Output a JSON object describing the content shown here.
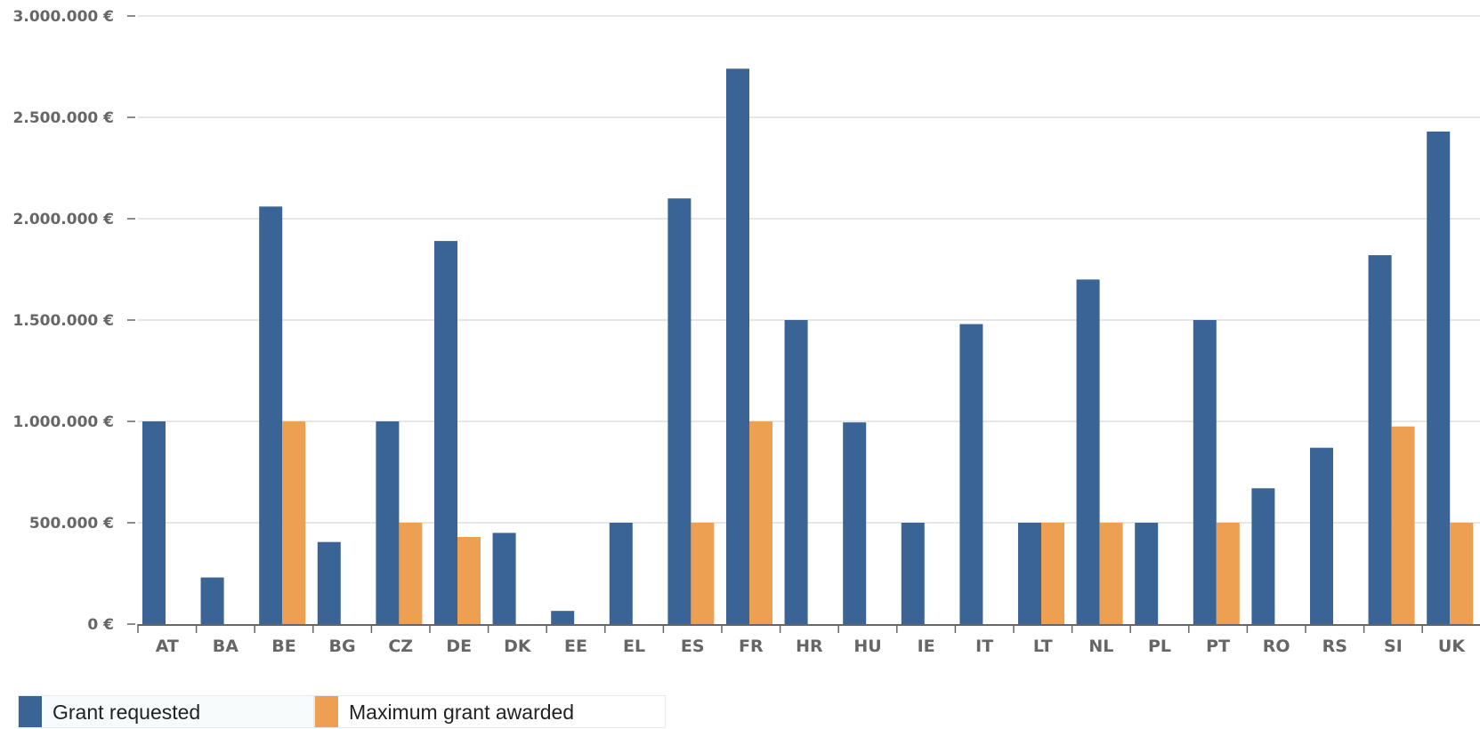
{
  "chart_data": {
    "type": "bar",
    "title": "",
    "xlabel": "",
    "ylabel": "",
    "ylim": [
      0,
      3000000
    ],
    "yticks": [
      0,
      500000,
      1000000,
      1500000,
      2000000,
      2500000,
      3000000
    ],
    "ytick_labels": [
      "0 €",
      "500.000 €",
      "1.000.000 €",
      "1.500.000 €",
      "2.000.000 €",
      "2.500.000 €",
      "3.000.000 €"
    ],
    "grid": true,
    "legend_position": "bottom-left",
    "categories": [
      "AT",
      "BA",
      "BE",
      "BG",
      "CZ",
      "DE",
      "DK",
      "EE",
      "EL",
      "ES",
      "FR",
      "HR",
      "HU",
      "IE",
      "IT",
      "LT",
      "NL",
      "PL",
      "PT",
      "RO",
      "RS",
      "SI",
      "UK"
    ],
    "series": [
      {
        "name": "Grant requested",
        "color": "#3a6496",
        "values": [
          1000000,
          230000,
          2060000,
          405000,
          1000000,
          1890000,
          450000,
          65000,
          500000,
          2100000,
          2740000,
          1500000,
          995000,
          500000,
          1480000,
          500000,
          1700000,
          500000,
          1500000,
          670000,
          870000,
          1820000,
          2430000
        ]
      },
      {
        "name": "Maximum grant awarded",
        "color": "#ed9f52",
        "values": [
          0,
          0,
          1000000,
          0,
          500000,
          430000,
          0,
          0,
          0,
          500000,
          1000000,
          0,
          0,
          0,
          0,
          500000,
          500000,
          0,
          500000,
          0,
          0,
          975000,
          500000
        ]
      }
    ]
  }
}
